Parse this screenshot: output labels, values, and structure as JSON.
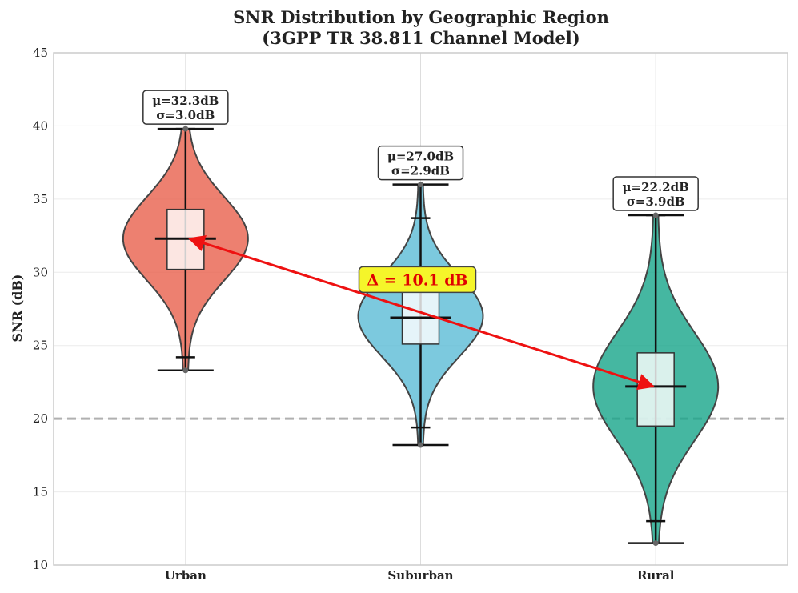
{
  "chart_data": {
    "type": "violin",
    "title": "SNR Distribution by Geographic Region",
    "subtitle": "(3GPP TR 38.811 Channel Model)",
    "xlabel": "",
    "ylabel": "SNR (dB)",
    "ylim": [
      10,
      45
    ],
    "yticks": [
      "10",
      "15",
      "20",
      "25",
      "30",
      "35",
      "40",
      "45"
    ],
    "categories": [
      "Urban",
      "Suburban",
      "Rural"
    ],
    "colors": [
      "#e8604c",
      "#5bbcd6",
      "#16a589"
    ],
    "grid": true,
    "series": [
      {
        "category": "Urban",
        "color": "#e8604c",
        "min": 23.3,
        "max": 39.8,
        "q1": 30.2,
        "median": 32.3,
        "q3": 34.3,
        "whisker_low": 24.2,
        "whisker_high": 39.8,
        "mean": 32.3,
        "std": 3.0,
        "mean_label": "μ=32.3dB",
        "std_label": "σ=3.0dB"
      },
      {
        "category": "Suburban",
        "color": "#5bbcd6",
        "min": 18.2,
        "max": 36.0,
        "q1": 25.1,
        "median": 26.9,
        "q3": 29.0,
        "whisker_low": 19.4,
        "whisker_high": 33.7,
        "mean": 27.0,
        "std": 2.9,
        "mean_label": "μ=27.0dB",
        "std_label": "σ=2.9dB"
      },
      {
        "category": "Rural",
        "color": "#16a589",
        "min": 11.5,
        "max": 33.9,
        "q1": 19.5,
        "median": 22.2,
        "q3": 24.5,
        "whisker_low": 13.0,
        "whisker_high": 33.9,
        "mean": 22.2,
        "std": 3.9,
        "mean_label": "μ=22.2dB",
        "std_label": "σ=3.9dB"
      }
    ],
    "reference_line": {
      "y": 20,
      "style": "dashed",
      "color": "#b0b0b0"
    },
    "annotation": {
      "text": "Δ = 10.1 dB",
      "from": {
        "category": "Urban",
        "y": 32.3
      },
      "to": {
        "category": "Rural",
        "y": 22.2
      },
      "arrow_color": "#ee1111",
      "box_color": "#f5f52a"
    }
  }
}
